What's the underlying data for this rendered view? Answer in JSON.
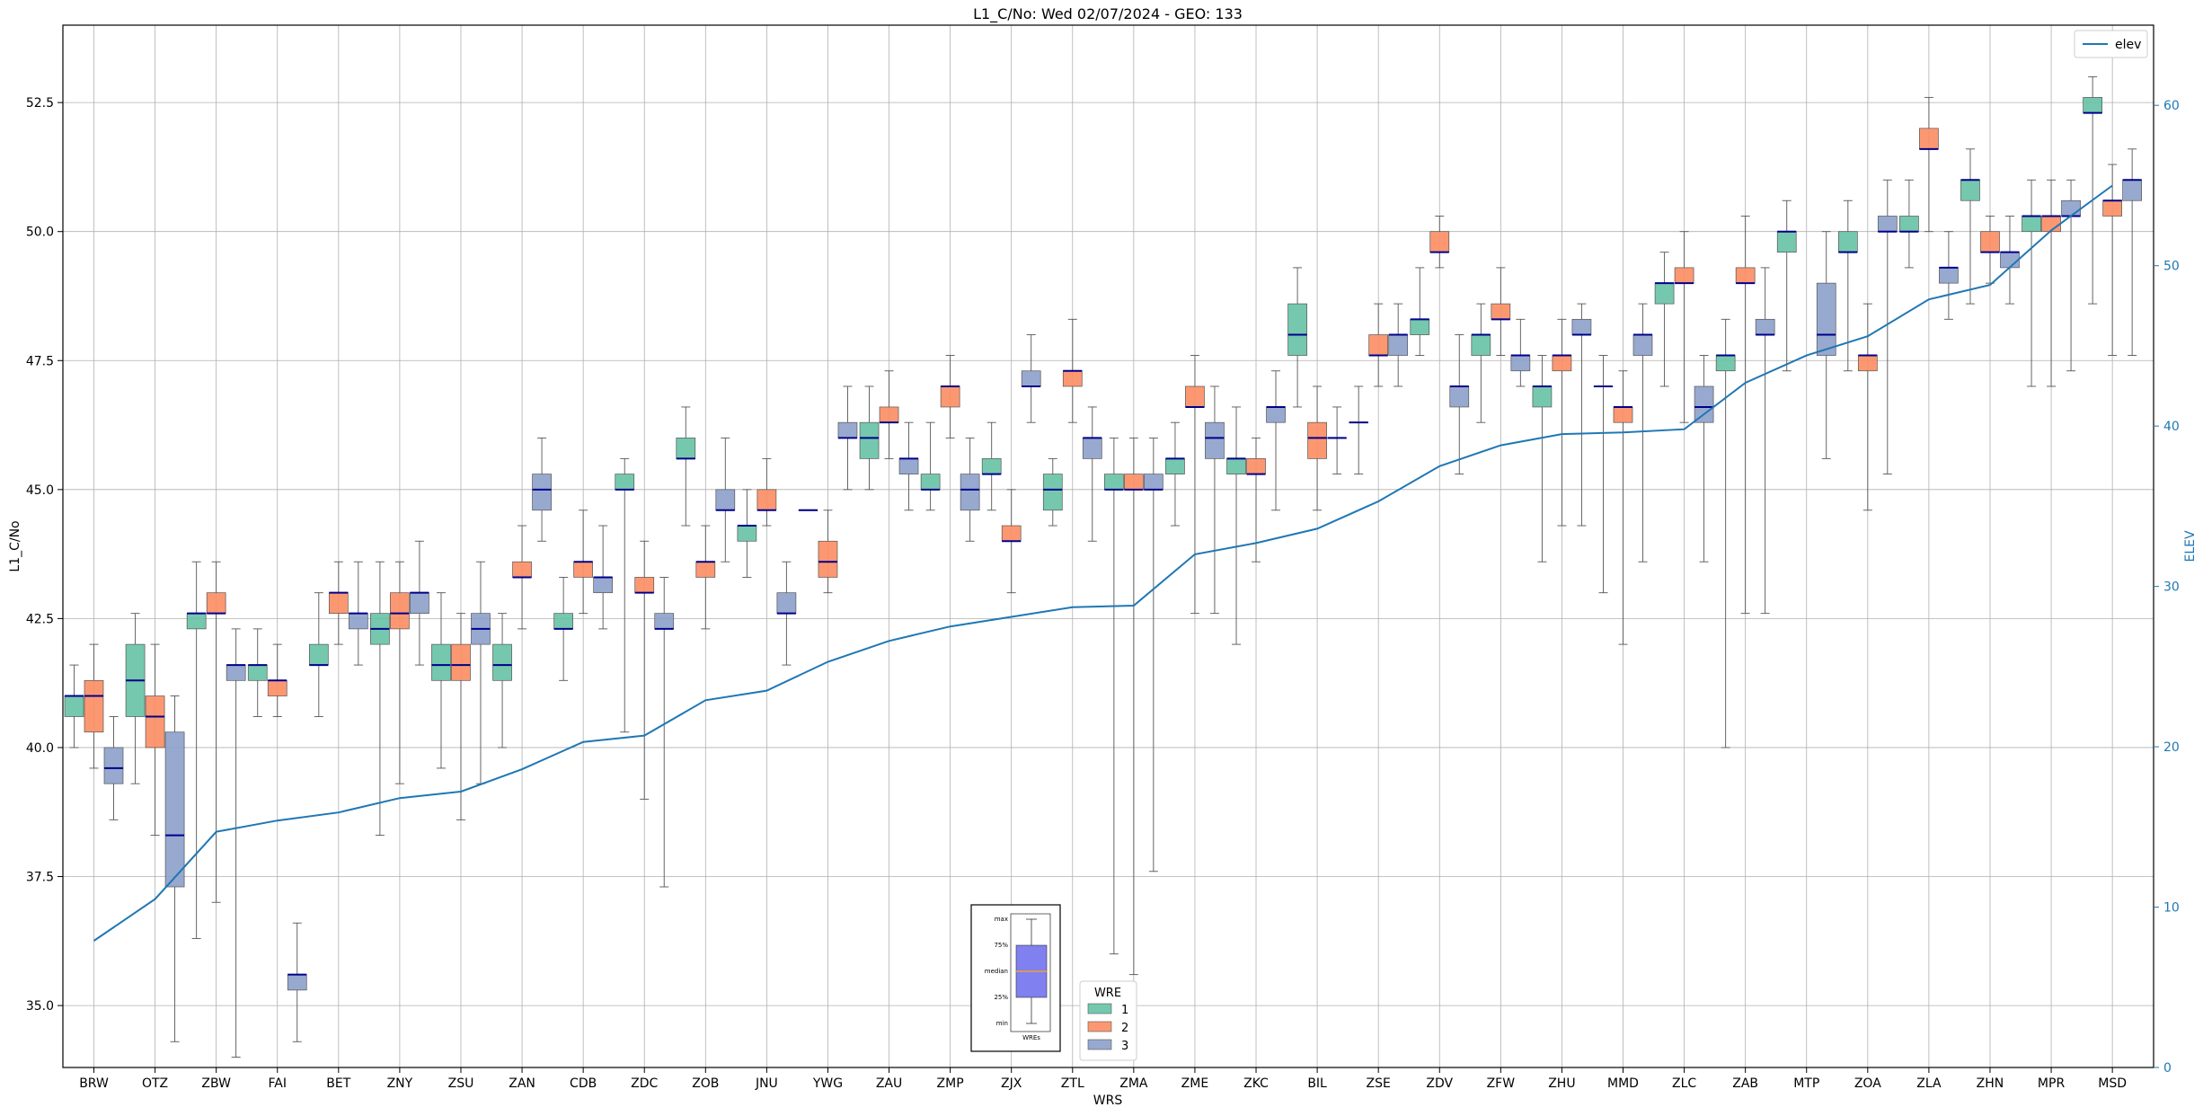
{
  "chart_data": {
    "type": "box",
    "title": "L1_C/No: Wed 02/07/2024 - GEO: 133",
    "xlabel": "WRS",
    "ylabel": "L1_C/No",
    "y2label": "ELEV",
    "ylim": [
      33.8,
      54.0
    ],
    "y2lim": [
      0,
      65
    ],
    "yticks": [
      35.0,
      37.5,
      40.0,
      42.5,
      45.0,
      47.5,
      50.0,
      52.5
    ],
    "y2ticks": [
      0,
      10,
      20,
      30,
      40,
      50,
      60
    ],
    "grid": true,
    "categories": [
      "BRW",
      "OTZ",
      "ZBW",
      "FAI",
      "BET",
      "ZNY",
      "ZSU",
      "ZAN",
      "CDB",
      "ZDC",
      "ZOB",
      "JNU",
      "YWG",
      "ZAU",
      "ZMP",
      "ZJX",
      "ZTL",
      "ZMA",
      "ZME",
      "ZKC",
      "BIL",
      "ZSE",
      "ZDV",
      "ZFW",
      "ZHU",
      "MMD",
      "ZLC",
      "ZAB",
      "MTP",
      "ZOA",
      "ZLA",
      "ZHN",
      "MPR",
      "MSD"
    ],
    "legend": {
      "title": "WRE",
      "placement": "bottom-center",
      "entries": [
        {
          "label": "1",
          "color": "#66c2a5"
        },
        {
          "label": "2",
          "color": "#fc8d62"
        },
        {
          "label": "3",
          "color": "#8da0cb"
        }
      ]
    },
    "line_legend": {
      "label": "elev",
      "color": "#1f77b4",
      "placement": "top-right"
    },
    "colors": {
      "wre1": "#66c2a5",
      "wre2": "#fc8d62",
      "wre3": "#8da0cb",
      "median": "#00008b",
      "elev": "#1f77b4",
      "whisker": "#555555",
      "grid": "#b0b0b0"
    },
    "key_inset": {
      "labels": [
        "max",
        "75%",
        "median",
        "25%",
        "min"
      ],
      "xlabel": "WREs",
      "box_color": "#8080f0",
      "median_color": "#f0a030"
    },
    "boxes": [
      {
        "wrs": "BRW",
        "wre": 1,
        "min": 40.0,
        "q1": 40.6,
        "median": 41.0,
        "q3": 41.0,
        "max": 41.6
      },
      {
        "wrs": "BRW",
        "wre": 2,
        "min": 39.6,
        "q1": 40.3,
        "median": 41.0,
        "q3": 41.3,
        "max": 42.0
      },
      {
        "wrs": "BRW",
        "wre": 3,
        "min": 38.6,
        "q1": 39.3,
        "median": 39.6,
        "q3": 40.0,
        "max": 40.6
      },
      {
        "wrs": "OTZ",
        "wre": 1,
        "min": 39.3,
        "q1": 40.6,
        "median": 41.3,
        "q3": 42.0,
        "max": 42.6
      },
      {
        "wrs": "OTZ",
        "wre": 2,
        "min": 38.3,
        "q1": 40.0,
        "median": 40.6,
        "q3": 41.0,
        "max": 42.0
      },
      {
        "wrs": "OTZ",
        "wre": 3,
        "min": 34.3,
        "q1": 37.3,
        "median": 38.3,
        "q3": 40.3,
        "max": 41.0
      },
      {
        "wrs": "ZBW",
        "wre": 1,
        "min": 36.3,
        "q1": 42.3,
        "median": 42.6,
        "q3": 42.6,
        "max": 43.6
      },
      {
        "wrs": "ZBW",
        "wre": 2,
        "min": 37.0,
        "q1": 42.6,
        "median": 42.6,
        "q3": 43.0,
        "max": 43.6
      },
      {
        "wrs": "ZBW",
        "wre": 3,
        "min": 34.0,
        "q1": 41.3,
        "median": 41.6,
        "q3": 41.6,
        "max": 42.3
      },
      {
        "wrs": "FAI",
        "wre": 1,
        "min": 40.6,
        "q1": 41.3,
        "median": 41.6,
        "q3": 41.6,
        "max": 42.3
      },
      {
        "wrs": "FAI",
        "wre": 2,
        "min": 40.6,
        "q1": 41.0,
        "median": 41.3,
        "q3": 41.3,
        "max": 42.0
      },
      {
        "wrs": "FAI",
        "wre": 3,
        "min": 34.3,
        "q1": 35.3,
        "median": 35.6,
        "q3": 35.6,
        "max": 36.6
      },
      {
        "wrs": "BET",
        "wre": 1,
        "min": 40.6,
        "q1": 41.6,
        "median": 41.6,
        "q3": 42.0,
        "max": 43.0
      },
      {
        "wrs": "BET",
        "wre": 2,
        "min": 42.0,
        "q1": 42.6,
        "median": 43.0,
        "q3": 43.0,
        "max": 43.6
      },
      {
        "wrs": "BET",
        "wre": 3,
        "min": 41.6,
        "q1": 42.3,
        "median": 42.6,
        "q3": 42.6,
        "max": 43.6
      },
      {
        "wrs": "ZNY",
        "wre": 1,
        "min": 38.3,
        "q1": 42.0,
        "median": 42.3,
        "q3": 42.6,
        "max": 43.6
      },
      {
        "wrs": "ZNY",
        "wre": 2,
        "min": 39.3,
        "q1": 42.3,
        "median": 42.6,
        "q3": 43.0,
        "max": 43.6
      },
      {
        "wrs": "ZNY",
        "wre": 3,
        "min": 41.6,
        "q1": 42.6,
        "median": 43.0,
        "q3": 43.0,
        "max": 44.0
      },
      {
        "wrs": "ZSU",
        "wre": 1,
        "min": 39.6,
        "q1": 41.3,
        "median": 41.6,
        "q3": 42.0,
        "max": 43.0
      },
      {
        "wrs": "ZSU",
        "wre": 2,
        "min": 38.6,
        "q1": 41.3,
        "median": 41.6,
        "q3": 42.0,
        "max": 42.6
      },
      {
        "wrs": "ZSU",
        "wre": 3,
        "min": 39.3,
        "q1": 42.0,
        "median": 42.3,
        "q3": 42.6,
        "max": 43.6
      },
      {
        "wrs": "ZAN",
        "wre": 1,
        "min": 40.0,
        "q1": 41.3,
        "median": 41.6,
        "q3": 42.0,
        "max": 42.6
      },
      {
        "wrs": "ZAN",
        "wre": 2,
        "min": 42.3,
        "q1": 43.3,
        "median": 43.3,
        "q3": 43.6,
        "max": 44.3
      },
      {
        "wrs": "ZAN",
        "wre": 3,
        "min": 44.0,
        "q1": 44.6,
        "median": 45.0,
        "q3": 45.3,
        "max": 46.0
      },
      {
        "wrs": "CDB",
        "wre": 1,
        "min": 41.3,
        "q1": 42.3,
        "median": 42.3,
        "q3": 42.6,
        "max": 43.3
      },
      {
        "wrs": "CDB",
        "wre": 2,
        "min": 42.6,
        "q1": 43.3,
        "median": 43.6,
        "q3": 43.6,
        "max": 44.6
      },
      {
        "wrs": "CDB",
        "wre": 3,
        "min": 42.3,
        "q1": 43.0,
        "median": 43.3,
        "q3": 43.3,
        "max": 44.3
      },
      {
        "wrs": "ZDC",
        "wre": 1,
        "min": 40.3,
        "q1": 45.0,
        "median": 45.0,
        "q3": 45.3,
        "max": 45.6
      },
      {
        "wrs": "ZDC",
        "wre": 2,
        "min": 39.0,
        "q1": 43.0,
        "median": 43.0,
        "q3": 43.3,
        "max": 44.0
      },
      {
        "wrs": "ZDC",
        "wre": 3,
        "min": 37.3,
        "q1": 42.3,
        "median": 42.3,
        "q3": 42.6,
        "max": 43.3
      },
      {
        "wrs": "ZOB",
        "wre": 1,
        "min": 44.3,
        "q1": 45.6,
        "median": 45.6,
        "q3": 46.0,
        "max": 46.6
      },
      {
        "wrs": "ZOB",
        "wre": 2,
        "min": 42.3,
        "q1": 43.3,
        "median": 43.6,
        "q3": 43.6,
        "max": 44.3
      },
      {
        "wrs": "ZOB",
        "wre": 3,
        "min": 43.6,
        "q1": 44.6,
        "median": 44.6,
        "q3": 45.0,
        "max": 46.0
      },
      {
        "wrs": "JNU",
        "wre": 1,
        "min": 43.3,
        "q1": 44.0,
        "median": 44.3,
        "q3": 44.3,
        "max": 45.0
      },
      {
        "wrs": "JNU",
        "wre": 2,
        "min": 44.3,
        "q1": 44.6,
        "median": 44.6,
        "q3": 45.0,
        "max": 45.6
      },
      {
        "wrs": "JNU",
        "wre": 3,
        "min": 41.6,
        "q1": 42.6,
        "median": 42.6,
        "q3": 43.0,
        "max": 43.6
      },
      {
        "wrs": "YWG",
        "wre": 1,
        "min": 44.6,
        "q1": 44.6,
        "median": 44.6,
        "q3": 44.6,
        "max": 44.6
      },
      {
        "wrs": "YWG",
        "wre": 2,
        "min": 43.0,
        "q1": 43.3,
        "median": 43.6,
        "q3": 44.0,
        "max": 44.6
      },
      {
        "wrs": "YWG",
        "wre": 3,
        "min": 45.0,
        "q1": 46.0,
        "median": 46.0,
        "q3": 46.3,
        "max": 47.0
      },
      {
        "wrs": "ZAU",
        "wre": 1,
        "min": 45.0,
        "q1": 45.6,
        "median": 46.0,
        "q3": 46.3,
        "max": 47.0
      },
      {
        "wrs": "ZAU",
        "wre": 2,
        "min": 45.6,
        "q1": 46.3,
        "median": 46.3,
        "q3": 46.6,
        "max": 47.3
      },
      {
        "wrs": "ZAU",
        "wre": 3,
        "min": 44.6,
        "q1": 45.3,
        "median": 45.6,
        "q3": 45.6,
        "max": 46.3
      },
      {
        "wrs": "ZMP",
        "wre": 1,
        "min": 44.6,
        "q1": 45.0,
        "median": 45.0,
        "q3": 45.3,
        "max": 46.3
      },
      {
        "wrs": "ZMP",
        "wre": 2,
        "min": 46.0,
        "q1": 46.6,
        "median": 47.0,
        "q3": 47.0,
        "max": 47.6
      },
      {
        "wrs": "ZMP",
        "wre": 3,
        "min": 44.0,
        "q1": 44.6,
        "median": 45.0,
        "q3": 45.3,
        "max": 46.0
      },
      {
        "wrs": "ZJX",
        "wre": 1,
        "min": 44.6,
        "q1": 45.3,
        "median": 45.3,
        "q3": 45.6,
        "max": 46.3
      },
      {
        "wrs": "ZJX",
        "wre": 2,
        "min": 43.0,
        "q1": 44.0,
        "median": 44.0,
        "q3": 44.3,
        "max": 45.0
      },
      {
        "wrs": "ZJX",
        "wre": 3,
        "min": 46.3,
        "q1": 47.0,
        "median": 47.0,
        "q3": 47.3,
        "max": 48.0
      },
      {
        "wrs": "ZTL",
        "wre": 1,
        "min": 44.3,
        "q1": 44.6,
        "median": 45.0,
        "q3": 45.3,
        "max": 45.6
      },
      {
        "wrs": "ZTL",
        "wre": 2,
        "min": 46.3,
        "q1": 47.0,
        "median": 47.3,
        "q3": 47.3,
        "max": 48.3
      },
      {
        "wrs": "ZTL",
        "wre": 3,
        "min": 44.0,
        "q1": 45.6,
        "median": 46.0,
        "q3": 46.0,
        "max": 46.6
      },
      {
        "wrs": "ZMA",
        "wre": 1,
        "min": 36.0,
        "q1": 45.0,
        "median": 45.0,
        "q3": 45.3,
        "max": 46.0
      },
      {
        "wrs": "ZMA",
        "wre": 2,
        "min": 35.6,
        "q1": 45.0,
        "median": 45.0,
        "q3": 45.3,
        "max": 46.0
      },
      {
        "wrs": "ZMA",
        "wre": 3,
        "min": 37.6,
        "q1": 45.0,
        "median": 45.0,
        "q3": 45.3,
        "max": 46.0
      },
      {
        "wrs": "ZME",
        "wre": 1,
        "min": 44.3,
        "q1": 45.3,
        "median": 45.6,
        "q3": 45.6,
        "max": 46.3
      },
      {
        "wrs": "ZME",
        "wre": 2,
        "min": 42.6,
        "q1": 46.6,
        "median": 46.6,
        "q3": 47.0,
        "max": 47.6
      },
      {
        "wrs": "ZME",
        "wre": 3,
        "min": 42.6,
        "q1": 45.6,
        "median": 46.0,
        "q3": 46.3,
        "max": 47.0
      },
      {
        "wrs": "ZKC",
        "wre": 1,
        "min": 42.0,
        "q1": 45.3,
        "median": 45.6,
        "q3": 45.6,
        "max": 46.6
      },
      {
        "wrs": "ZKC",
        "wre": 2,
        "min": 43.6,
        "q1": 45.3,
        "median": 45.3,
        "q3": 45.6,
        "max": 46.0
      },
      {
        "wrs": "ZKC",
        "wre": 3,
        "min": 44.6,
        "q1": 46.3,
        "median": 46.6,
        "q3": 46.6,
        "max": 47.3
      },
      {
        "wrs": "BIL",
        "wre": 1,
        "min": 46.6,
        "q1": 47.6,
        "median": 48.0,
        "q3": 48.6,
        "max": 49.3
      },
      {
        "wrs": "BIL",
        "wre": 2,
        "min": 44.6,
        "q1": 45.6,
        "median": 46.0,
        "q3": 46.3,
        "max": 47.0
      },
      {
        "wrs": "BIL",
        "wre": 3,
        "min": 45.3,
        "q1": 46.0,
        "median": 46.0,
        "q3": 46.0,
        "max": 46.6
      },
      {
        "wrs": "ZSE",
        "wre": 1,
        "min": 45.3,
        "q1": 46.3,
        "median": 46.3,
        "q3": 46.3,
        "max": 47.0
      },
      {
        "wrs": "ZSE",
        "wre": 2,
        "min": 47.0,
        "q1": 47.6,
        "median": 47.6,
        "q3": 48.0,
        "max": 48.6
      },
      {
        "wrs": "ZSE",
        "wre": 3,
        "min": 47.0,
        "q1": 47.6,
        "median": 48.0,
        "q3": 48.0,
        "max": 48.6
      },
      {
        "wrs": "ZDV",
        "wre": 1,
        "min": 47.6,
        "q1": 48.0,
        "median": 48.3,
        "q3": 48.3,
        "max": 49.3
      },
      {
        "wrs": "ZDV",
        "wre": 2,
        "min": 49.3,
        "q1": 49.6,
        "median": 49.6,
        "q3": 50.0,
        "max": 50.3
      },
      {
        "wrs": "ZDV",
        "wre": 3,
        "min": 45.3,
        "q1": 46.6,
        "median": 47.0,
        "q3": 47.0,
        "max": 48.0
      },
      {
        "wrs": "ZFW",
        "wre": 1,
        "min": 46.3,
        "q1": 47.6,
        "median": 48.0,
        "q3": 48.0,
        "max": 48.6
      },
      {
        "wrs": "ZFW",
        "wre": 2,
        "min": 47.6,
        "q1": 48.3,
        "median": 48.3,
        "q3": 48.6,
        "max": 49.3
      },
      {
        "wrs": "ZFW",
        "wre": 3,
        "min": 47.0,
        "q1": 47.3,
        "median": 47.6,
        "q3": 47.6,
        "max": 48.3
      },
      {
        "wrs": "ZHU",
        "wre": 1,
        "min": 43.6,
        "q1": 46.6,
        "median": 47.0,
        "q3": 47.0,
        "max": 47.6
      },
      {
        "wrs": "ZHU",
        "wre": 2,
        "min": 44.3,
        "q1": 47.3,
        "median": 47.6,
        "q3": 47.6,
        "max": 48.3
      },
      {
        "wrs": "ZHU",
        "wre": 3,
        "min": 44.3,
        "q1": 48.0,
        "median": 48.0,
        "q3": 48.3,
        "max": 48.6
      },
      {
        "wrs": "MMD",
        "wre": 1,
        "min": 43.0,
        "q1": 47.0,
        "median": 47.0,
        "q3": 47.0,
        "max": 47.6
      },
      {
        "wrs": "MMD",
        "wre": 2,
        "min": 42.0,
        "q1": 46.3,
        "median": 46.6,
        "q3": 46.6,
        "max": 47.3
      },
      {
        "wrs": "MMD",
        "wre": 3,
        "min": 43.6,
        "q1": 47.6,
        "median": 48.0,
        "q3": 48.0,
        "max": 48.6
      },
      {
        "wrs": "ZLC",
        "wre": 1,
        "min": 47.0,
        "q1": 48.6,
        "median": 49.0,
        "q3": 49.0,
        "max": 49.6
      },
      {
        "wrs": "ZLC",
        "wre": 2,
        "min": 46.3,
        "q1": 49.0,
        "median": 49.0,
        "q3": 49.3,
        "max": 50.0
      },
      {
        "wrs": "ZLC",
        "wre": 3,
        "min": 43.6,
        "q1": 46.3,
        "median": 46.6,
        "q3": 47.0,
        "max": 47.6
      },
      {
        "wrs": "ZAB",
        "wre": 1,
        "min": 40.0,
        "q1": 47.3,
        "median": 47.6,
        "q3": 47.6,
        "max": 48.3
      },
      {
        "wrs": "ZAB",
        "wre": 2,
        "min": 42.6,
        "q1": 49.0,
        "median": 49.0,
        "q3": 49.3,
        "max": 50.3
      },
      {
        "wrs": "ZAB",
        "wre": 3,
        "min": 42.6,
        "q1": 48.0,
        "median": 48.0,
        "q3": 48.3,
        "max": 49.3
      },
      {
        "wrs": "MTP",
        "wre": 1,
        "min": 47.3,
        "q1": 49.6,
        "median": 50.0,
        "q3": 50.0,
        "max": 50.6
      },
      {
        "wrs": "MTP",
        "wre": 2,
        "min": null,
        "q1": null,
        "median": null,
        "q3": null,
        "max": null
      },
      {
        "wrs": "MTP",
        "wre": 3,
        "min": 45.6,
        "q1": 47.6,
        "median": 48.0,
        "q3": 49.0,
        "max": 50.0
      },
      {
        "wrs": "ZOA",
        "wre": 1,
        "min": 47.3,
        "q1": 49.6,
        "median": 49.6,
        "q3": 50.0,
        "max": 50.6
      },
      {
        "wrs": "ZOA",
        "wre": 2,
        "min": 44.6,
        "q1": 47.3,
        "median": 47.6,
        "q3": 47.6,
        "max": 48.6
      },
      {
        "wrs": "ZOA",
        "wre": 3,
        "min": 45.3,
        "q1": 50.0,
        "median": 50.0,
        "q3": 50.3,
        "max": 51.0
      },
      {
        "wrs": "ZLA",
        "wre": 1,
        "min": 49.3,
        "q1": 50.0,
        "median": 50.0,
        "q3": 50.3,
        "max": 51.0
      },
      {
        "wrs": "ZLA",
        "wre": 2,
        "min": 50.0,
        "q1": 51.6,
        "median": 51.6,
        "q3": 52.0,
        "max": 52.6
      },
      {
        "wrs": "ZLA",
        "wre": 3,
        "min": 48.3,
        "q1": 49.0,
        "median": 49.3,
        "q3": 49.3,
        "max": 50.0
      },
      {
        "wrs": "ZHN",
        "wre": 1,
        "min": 48.6,
        "q1": 50.6,
        "median": 51.0,
        "q3": 51.0,
        "max": 51.6
      },
      {
        "wrs": "ZHN",
        "wre": 2,
        "min": 49.0,
        "q1": 49.6,
        "median": 49.6,
        "q3": 50.0,
        "max": 50.3
      },
      {
        "wrs": "ZHN",
        "wre": 3,
        "min": 48.6,
        "q1": 49.3,
        "median": 49.6,
        "q3": 49.6,
        "max": 50.3
      },
      {
        "wrs": "MPR",
        "wre": 1,
        "min": 47.0,
        "q1": 50.0,
        "median": 50.3,
        "q3": 50.3,
        "max": 51.0
      },
      {
        "wrs": "MPR",
        "wre": 2,
        "min": 47.0,
        "q1": 50.0,
        "median": 50.3,
        "q3": 50.3,
        "max": 51.0
      },
      {
        "wrs": "MPR",
        "wre": 3,
        "min": 47.3,
        "q1": 50.3,
        "median": 50.3,
        "q3": 50.6,
        "max": 51.0
      },
      {
        "wrs": "MSD",
        "wre": 1,
        "min": 48.6,
        "q1": 52.3,
        "median": 52.3,
        "q3": 52.6,
        "max": 53.0
      },
      {
        "wrs": "MSD",
        "wre": 2,
        "min": 47.6,
        "q1": 50.3,
        "median": 50.6,
        "q3": 50.6,
        "max": 51.3
      },
      {
        "wrs": "MSD",
        "wre": 3,
        "min": 47.6,
        "q1": 50.6,
        "median": 51.0,
        "q3": 51.0,
        "max": 51.6
      }
    ],
    "elev": [
      7.9,
      10.5,
      14.7,
      15.4,
      15.9,
      16.8,
      17.2,
      18.6,
      20.3,
      20.7,
      22.9,
      23.5,
      25.3,
      26.6,
      27.5,
      28.1,
      28.7,
      28.8,
      32.0,
      32.7,
      33.6,
      35.3,
      37.5,
      38.8,
      39.5,
      39.6,
      39.8,
      42.7,
      44.4,
      45.6,
      47.9,
      48.8,
      52.2,
      55.0
    ]
  }
}
